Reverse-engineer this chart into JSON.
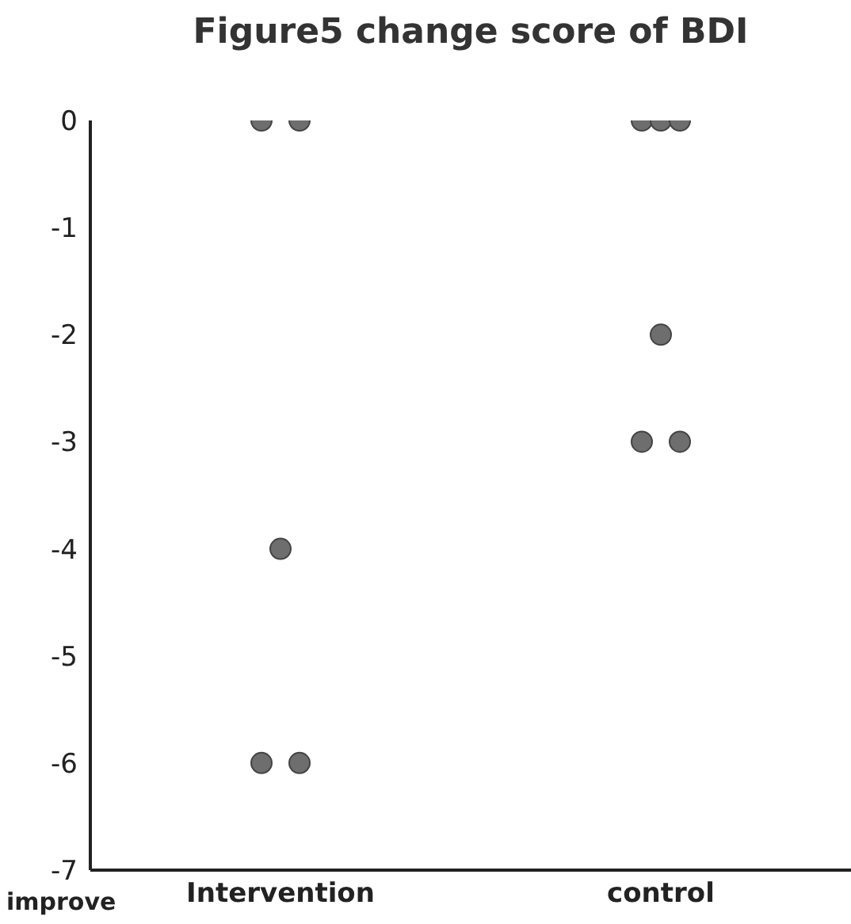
{
  "chart_data": {
    "type": "scatter",
    "title": "Figure5 change score of BDI",
    "annotations": [
      "improve"
    ],
    "categories": [
      "Intervention",
      "control"
    ],
    "series": [
      {
        "color": "#6e6e6e",
        "x": [
          "Intervention",
          "Intervention",
          "control",
          "control"
        ],
        "values": [
          0,
          -6,
          0,
          -3
        ]
      },
      {
        "color": "#6e6e6e",
        "x": [
          "Intervention",
          "control",
          "control"
        ],
        "values": [
          -4,
          0,
          -2
        ]
      },
      {
        "color": "#6e6e6e",
        "x": [
          "Intervention",
          "Intervention",
          "control",
          "control"
        ],
        "values": [
          0,
          -6,
          0,
          -3
        ]
      }
    ],
    "ylim": [
      -7,
      0
    ],
    "yticks": [
      -7,
      -6,
      -5,
      -4,
      -3,
      -2,
      -1,
      0
    ],
    "marker": "circle",
    "grid": false
  }
}
